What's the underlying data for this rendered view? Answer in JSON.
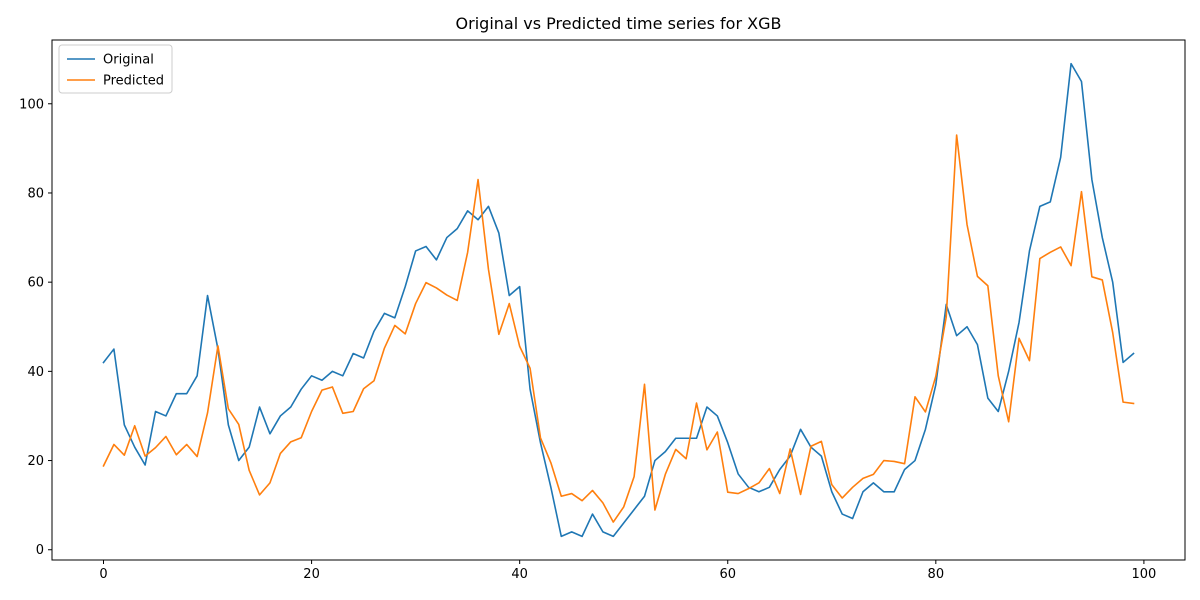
{
  "chart_data": {
    "type": "line",
    "title": "Original vs Predicted time series for XGB",
    "xlabel": "",
    "ylabel": "",
    "xlim": [
      -4.95,
      103.95
    ],
    "ylim": [
      -2.3,
      114.3
    ],
    "xticks": [
      0,
      20,
      40,
      60,
      80,
      100
    ],
    "yticks": [
      0,
      20,
      40,
      60,
      80,
      100
    ],
    "grid": false,
    "legend_position": "top-left",
    "series": [
      {
        "name": "Original",
        "color": "#1f77b4",
        "values": [
          42,
          45,
          28,
          23,
          19,
          31,
          30,
          35,
          35,
          39,
          57,
          45,
          28,
          20,
          23,
          32,
          26,
          30,
          32,
          36,
          39,
          38,
          40,
          39,
          44,
          43,
          49,
          53,
          52,
          59,
          67,
          68,
          65,
          70,
          72,
          76,
          74,
          77,
          71,
          57,
          59,
          36,
          24,
          14,
          3,
          4,
          3,
          8,
          4,
          3,
          6,
          9,
          12,
          20,
          22,
          25,
          25,
          25,
          32,
          30,
          24,
          17,
          14,
          13,
          14,
          18,
          21,
          27,
          23,
          21,
          13,
          8,
          7,
          13,
          15,
          13,
          13,
          18,
          20,
          27,
          37,
          55,
          48,
          50,
          46,
          34,
          31,
          40,
          51,
          67,
          77,
          78,
          88,
          109,
          105,
          83,
          70,
          60,
          42,
          44
        ]
      },
      {
        "name": "Predicted",
        "color": "#ff7f0e",
        "values": [
          18.8,
          23.6,
          21.2,
          27.8,
          21.0,
          22.9,
          25.4,
          21.3,
          23.6,
          20.9,
          30.7,
          45.7,
          31.6,
          28.1,
          17.8,
          12.3,
          15.0,
          21.6,
          24.2,
          25.1,
          31.0,
          35.8,
          36.5,
          30.6,
          31.0,
          36.1,
          37.9,
          45.2,
          50.3,
          48.4,
          55.2,
          59.9,
          58.7,
          57.1,
          55.9,
          66.7,
          83.0,
          62.9,
          48.3,
          55.2,
          45.6,
          40.7,
          25.1,
          19.5,
          12.0,
          12.6,
          11.0,
          13.3,
          10.5,
          6.2,
          9.6,
          16.4,
          37.1,
          8.9,
          16.9,
          22.5,
          20.4,
          32.9,
          22.4,
          26.4,
          12.9,
          12.6,
          13.7,
          15.0,
          18.2,
          12.6,
          22.6,
          12.4,
          23.2,
          24.3,
          14.6,
          11.6,
          14.0,
          16.0,
          16.9,
          20.0,
          19.8,
          19.3,
          34.3,
          30.9,
          38.9,
          52.2,
          93.0,
          72.9,
          61.3,
          59.2,
          39.0,
          28.7,
          47.4,
          42.4,
          65.3,
          66.7,
          67.9,
          63.7,
          80.3,
          61.2,
          60.5,
          48.7,
          33.1,
          32.8
        ]
      }
    ]
  }
}
